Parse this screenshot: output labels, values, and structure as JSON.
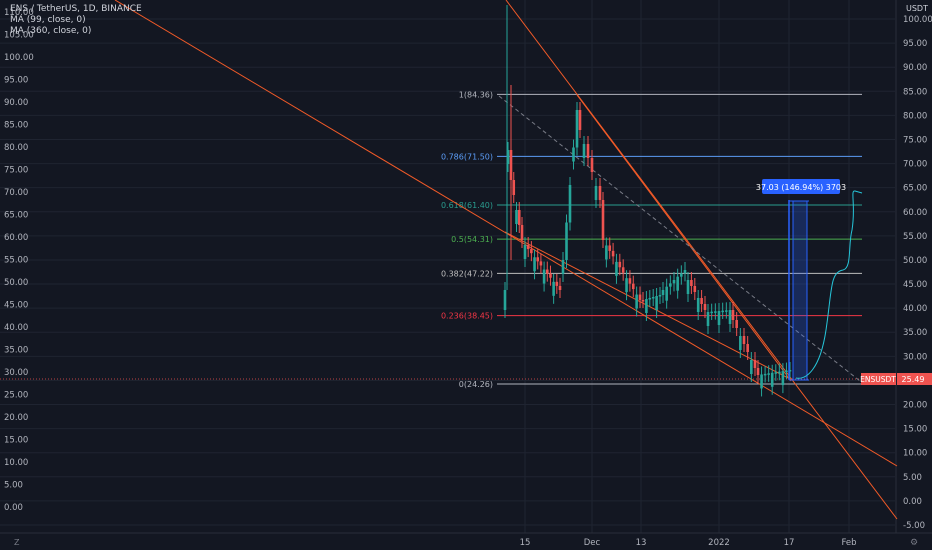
{
  "legend": {
    "symbol_line": "ENS / TetherUS, 1D, BINANCE",
    "indicators": [
      "MA (99, close, 0)",
      "MA (360, close, 0)"
    ]
  },
  "left_axis": {
    "ticks": [
      "110.00",
      "105.00",
      "100.00",
      "95.00",
      "90.00",
      "85.00",
      "80.00",
      "75.00",
      "70.00",
      "65.00",
      "60.00",
      "55.00",
      "50.00",
      "45.00",
      "40.00",
      "35.00",
      "30.00",
      "25.00",
      "20.00",
      "15.00",
      "10.00",
      "5.00",
      "0.00"
    ]
  },
  "right_axis": {
    "currency": "USDT",
    "ticks": [
      "100.00",
      "95.00",
      "90.00",
      "85.00",
      "80.00",
      "75.00",
      "70.00",
      "65.00",
      "60.00",
      "55.00",
      "50.00",
      "45.00",
      "40.00",
      "35.00",
      "30.00",
      "25.00",
      "20.00",
      "15.00",
      "10.00",
      "5.00",
      "0.00",
      "-5.00"
    ],
    "price_label": "25.49",
    "symbol_badge": "ENSUSDT"
  },
  "time_axis": {
    "labels": [
      "15",
      "Dec",
      "13",
      "2022",
      "17",
      "Feb"
    ]
  },
  "fib_levels": [
    {
      "label": "1(84.36)",
      "level": 84.36,
      "color": "#b2b5be"
    },
    {
      "label": "0.786(71.50)",
      "level": 71.5,
      "color": "#5b9cf6"
    },
    {
      "label": "0.618(61.40)",
      "level": 61.4,
      "color": "#2a9d8f"
    },
    {
      "label": "0.5(54.31)",
      "level": 54.31,
      "color": "#4caf50"
    },
    {
      "label": "0.382(47.22)",
      "level": 47.22,
      "color": "#bdbdbd"
    },
    {
      "label": "0.236(38.45)",
      "level": 38.45,
      "color": "#f23645"
    },
    {
      "label": "0(24.26)",
      "level": 24.26,
      "color": "#b2b5be"
    }
  ],
  "measure_label": "37.03 (146.94%) 3703",
  "corner_buttons": {
    "left": "Z",
    "right": "⚙"
  },
  "colors": {
    "up": "#26a69a",
    "down": "#ef5350",
    "trend": "#f05a28",
    "measure": "#2962ff"
  }
}
